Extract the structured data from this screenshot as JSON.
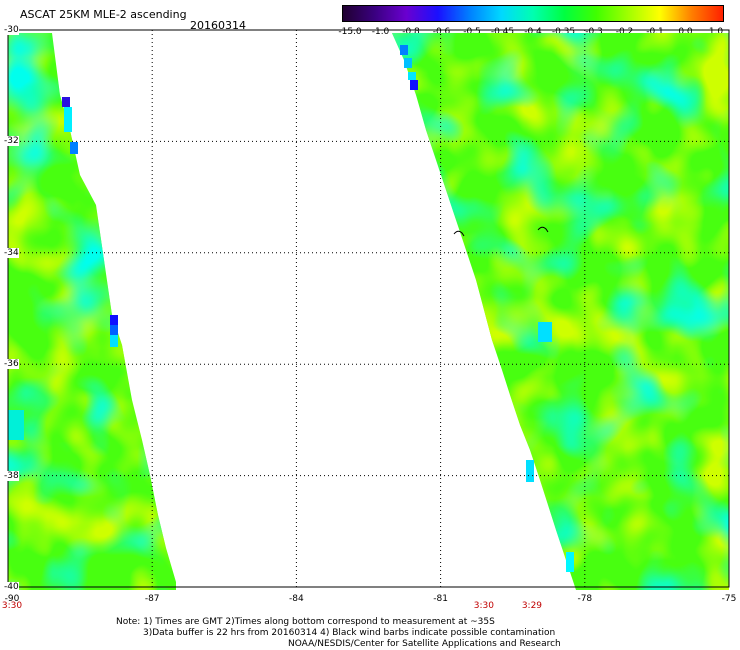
{
  "title": "ASCAT 25KM MLE-2 ascending",
  "date": "20160314",
  "colorbar": {
    "labels": [
      "-15.0",
      "-1.0",
      "-0.8",
      "-0.6",
      "-0.5",
      "-0.45",
      "-0.4",
      "-0.35",
      "-0.3",
      "-0.2",
      "-0.1",
      "0.0",
      "1.0"
    ],
    "colors": [
      "#200030",
      "#3a0080",
      "#6a00d0",
      "#1a10ff",
      "#0080ff",
      "#00d8ff",
      "#00ffb0",
      "#00ff40",
      "#40ff00",
      "#a0ff00",
      "#ffff00",
      "#ff8000",
      "#ff2000"
    ]
  },
  "map": {
    "lat_range": [
      -40,
      -30
    ],
    "lon_range": [
      -90,
      -75
    ],
    "lat_labels": [
      "-30",
      "-32",
      "-34",
      "-36",
      "-38",
      "-40"
    ],
    "lon_labels": [
      "-90",
      "-87",
      "-84",
      "-81",
      "-78",
      "-75"
    ],
    "time_labels": [
      {
        "text": "3:30",
        "lon": -90
      },
      {
        "text": "3:30",
        "lon": -80.1
      },
      {
        "text": "3:29",
        "lon": -79.1
      }
    ]
  },
  "notes": [
    "Note: 1) Times are GMT 2)Times along bottom correspond to measurement at ~35S",
    "3)Data buffer is 22 hrs from 20160314 4) Black wind barbs indicate possible contamination",
    "NOAA/NESDIS/Center for Satellite Applications and Research"
  ]
}
